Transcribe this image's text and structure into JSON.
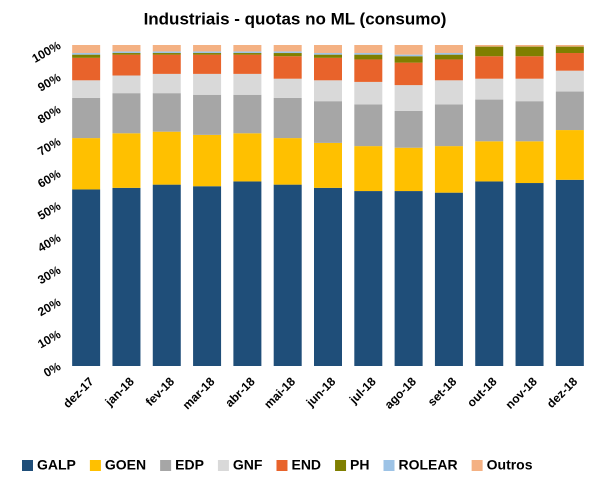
{
  "chart_data": {
    "type": "stacked_bar",
    "title": "Industriais - quotas no ML (consumo)",
    "categories": [
      "dez-17",
      "jan-18",
      "fev-18",
      "mar-18",
      "abr-18",
      "mai-18",
      "jun-18",
      "jul-18",
      "ago-18",
      "set-18",
      "out-18",
      "nov-18",
      "dez-18"
    ],
    "series": [
      {
        "name": "GALP",
        "color": "#1f4e79",
        "values": [
          55,
          55.5,
          56.5,
          56,
          57.5,
          56.5,
          55.5,
          54.5,
          54.5,
          54,
          57.5,
          57,
          58
        ]
      },
      {
        "name": "GOEN",
        "color": "#ffc000",
        "values": [
          16,
          17,
          16.5,
          16,
          15,
          14.5,
          14,
          14,
          13.5,
          14.5,
          12.5,
          13,
          15.5
        ]
      },
      {
        "name": "EDP",
        "color": "#a6a6a6",
        "values": [
          12.5,
          12.5,
          12,
          12.5,
          12,
          12.5,
          13,
          13,
          11.5,
          13,
          13,
          12.5,
          12
        ]
      },
      {
        "name": "GNF",
        "color": "#d9d9d9",
        "values": [
          5.5,
          5.5,
          6,
          6.5,
          6.5,
          6,
          6.5,
          7,
          8,
          7.5,
          6.5,
          7,
          6.5
        ]
      },
      {
        "name": "END",
        "color": "#e8632b",
        "values": [
          7,
          6.5,
          6,
          6,
          6,
          7,
          7,
          7,
          7,
          6.5,
          7,
          7,
          5.5
        ]
      },
      {
        "name": "PH",
        "color": "#7f7f00",
        "values": [
          1,
          0.5,
          0.5,
          0.5,
          0.5,
          1,
          1,
          1.5,
          2,
          1.5,
          3,
          3,
          2
        ]
      },
      {
        "name": "ROLEAR",
        "color": "#9dc3e6",
        "values": [
          0.5,
          0.5,
          0.5,
          0.5,
          0.5,
          0.5,
          0.5,
          0.5,
          0.5,
          0.5,
          0,
          0,
          0
        ]
      },
      {
        "name": "Outros",
        "color": "#f4b183",
        "values": [
          2.5,
          2,
          2,
          2,
          2,
          2,
          2.5,
          2.5,
          3,
          2.5,
          0.5,
          0.5,
          0.5
        ]
      }
    ],
    "ylim": [
      0,
      100
    ],
    "yticks": [
      {
        "value": 0,
        "label": "0%"
      },
      {
        "value": 10,
        "label": "10%"
      },
      {
        "value": 20,
        "label": "20%"
      },
      {
        "value": 30,
        "label": "30%"
      },
      {
        "value": 40,
        "label": "40%"
      },
      {
        "value": 50,
        "label": "50%"
      },
      {
        "value": 60,
        "label": "60%"
      },
      {
        "value": 70,
        "label": "70%"
      },
      {
        "value": 80,
        "label": "80%"
      },
      {
        "value": 90,
        "label": "90%"
      },
      {
        "value": 100,
        "label": "100%"
      }
    ],
    "grid": false,
    "legend": "bottom"
  }
}
